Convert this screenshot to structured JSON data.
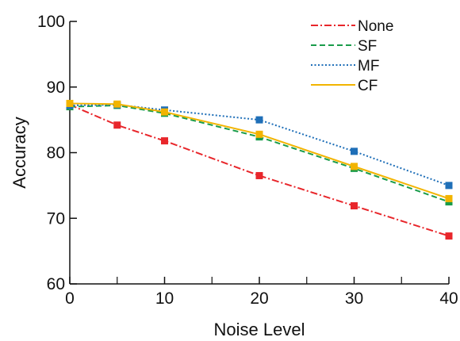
{
  "chart_data": {
    "type": "line",
    "xlabel": "Noise Level",
    "ylabel": "Accuracy",
    "xlim": [
      0,
      40
    ],
    "ylim": [
      60,
      100
    ],
    "xticks": [
      0,
      10,
      20,
      30,
      40
    ],
    "xminor": [
      5,
      15,
      25,
      35
    ],
    "yticks": [
      60,
      70,
      80,
      90,
      100
    ],
    "grid": false,
    "legend_position": "top-right",
    "x": [
      0,
      5,
      10,
      20,
      30,
      40
    ],
    "series": [
      {
        "name": "None",
        "color": "#e8262b",
        "dash": "dash-dot",
        "values": [
          87.3,
          84.2,
          81.8,
          76.5,
          71.9,
          67.3
        ]
      },
      {
        "name": "SF",
        "color": "#1a9c4a",
        "dash": "dashed",
        "values": [
          87.0,
          87.2,
          86.0,
          82.4,
          77.6,
          72.5
        ]
      },
      {
        "name": "MF",
        "color": "#1f6fb8",
        "dash": "dotted",
        "values": [
          87.2,
          87.3,
          86.5,
          85.0,
          80.2,
          75.0
        ]
      },
      {
        "name": "CF",
        "color": "#f2b400",
        "dash": "solid",
        "values": [
          87.5,
          87.4,
          86.2,
          82.8,
          77.9,
          73.0
        ]
      }
    ]
  }
}
